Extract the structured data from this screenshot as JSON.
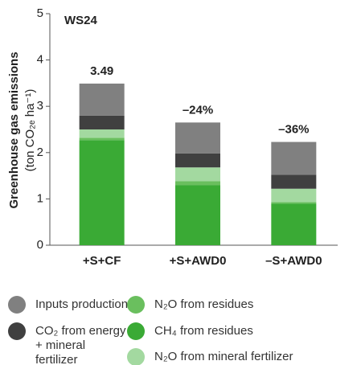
{
  "chart_data": {
    "type": "stacked_bar",
    "title": "WS24",
    "ylabel": "Greenhouse gas emissions",
    "ylabel_unit": "(ton CO₂ₑ ha⁻¹)",
    "categories": [
      "+S+CF",
      "+S+AWD0",
      "–S+AWD0"
    ],
    "annotations": [
      "3.49",
      "–24%",
      "–36%"
    ],
    "series": [
      {
        "name": "CH₄ from residues",
        "color": "#3aaa35",
        "values": [
          2.27,
          1.3,
          0.9
        ]
      },
      {
        "name": "N₂O from residues",
        "color": "#6abf5e",
        "values": [
          0.05,
          0.08,
          0.03
        ]
      },
      {
        "name": "N₂O from mineral fertilizer",
        "color": "#a3d9a0",
        "values": [
          0.18,
          0.3,
          0.29
        ]
      },
      {
        "name": "CO₂ from energy + mineral fertilizer",
        "color": "#404040",
        "values": [
          0.3,
          0.3,
          0.3
        ]
      },
      {
        "name": "Inputs production",
        "color": "#808080",
        "values": [
          0.69,
          0.67,
          0.71
        ]
      }
    ],
    "ylim": [
      0,
      5
    ],
    "yticks": [
      0,
      1,
      2,
      3,
      4,
      5
    ]
  }
}
